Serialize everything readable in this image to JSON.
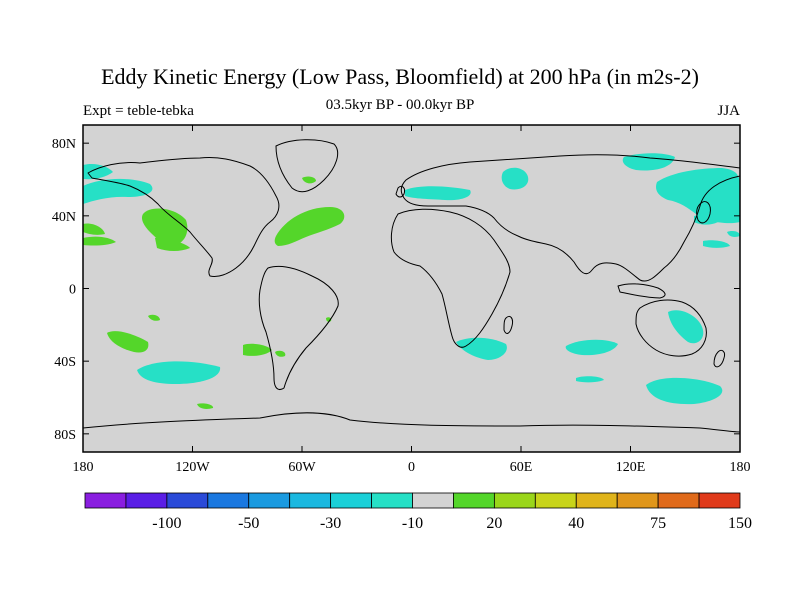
{
  "title": "Eddy Kinetic Energy (Low Pass, Bloomfield) at 200 hPa (in m2s-2)",
  "subtitle_center": "03.5kyr BP - 00.0kyr BP",
  "subtitle_left": "Expt = teble-tebka",
  "subtitle_right": "JJA",
  "colors": {
    "land_ocean_background": "#d3d3d3",
    "positive_contour": "#54d62a",
    "negative_contour": "#26e0c6",
    "coastline": "#000000"
  },
  "map": {
    "projection": "cylindrical-equidistant",
    "lon_range": [
      -180,
      180
    ],
    "lat_range": [
      -90,
      90
    ],
    "lon_ticks": [
      {
        "value": -180,
        "label": "180"
      },
      {
        "value": -120,
        "label": "120W"
      },
      {
        "value": -60,
        "label": "60W"
      },
      {
        "value": 0,
        "label": "0"
      },
      {
        "value": 60,
        "label": "60E"
      },
      {
        "value": 120,
        "label": "120E"
      },
      {
        "value": 180,
        "label": "180"
      }
    ],
    "lat_ticks": [
      {
        "value": 80,
        "label": "80N"
      },
      {
        "value": 40,
        "label": "40N"
      },
      {
        "value": 0,
        "label": "0"
      },
      {
        "value": -40,
        "label": "40S"
      },
      {
        "value": -80,
        "label": "80S"
      }
    ]
  },
  "colorbar": {
    "colors": [
      "#8a1ee0",
      "#5a1ee6",
      "#2a4ad8",
      "#1a78e0",
      "#1a9ae0",
      "#1ab8e0",
      "#1ad0d8",
      "#26e0c6",
      "#d3d3d3",
      "#54d62a",
      "#9ad61a",
      "#c8d41a",
      "#e0b41a",
      "#e0961a",
      "#e06a1a",
      "#e03a1a"
    ],
    "labels": [
      "-100",
      "-50",
      "-30",
      "-10",
      "20",
      "40",
      "75",
      "150"
    ]
  }
}
